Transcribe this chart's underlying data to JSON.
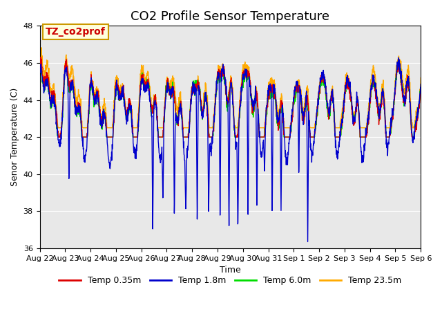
{
  "title": "CO2 Profile Sensor Temperature",
  "xlabel": "Time",
  "ylabel": "Senor Temperature (C)",
  "ylim": [
    36,
    48
  ],
  "yticks": [
    36,
    38,
    40,
    42,
    44,
    46,
    48
  ],
  "annotation_text": "TZ_co2prof",
  "annotation_color": "#cc0000",
  "annotation_bg": "#ffffdd",
  "annotation_border": "#cc9900",
  "facecolor": "#e8e8e8",
  "line_colors": {
    "Temp 0.35m": "#dd0000",
    "Temp 1.8m": "#0000cc",
    "Temp 6.0m": "#00dd00",
    "Temp 23.5m": "#ffaa00"
  },
  "xtick_labels": [
    "Aug 22",
    "Aug 23",
    "Aug 24",
    "Aug 25",
    "Aug 26",
    "Aug 27",
    "Aug 28",
    "Aug 29",
    "Aug 30",
    "Aug 31",
    "Sep 1",
    "Sep 2",
    "Sep 3",
    "Sep 4",
    "Sep 5",
    "Sep 6"
  ],
  "legend_fontsize": 9,
  "title_fontsize": 13,
  "axis_label_fontsize": 9,
  "tick_fontsize": 8
}
